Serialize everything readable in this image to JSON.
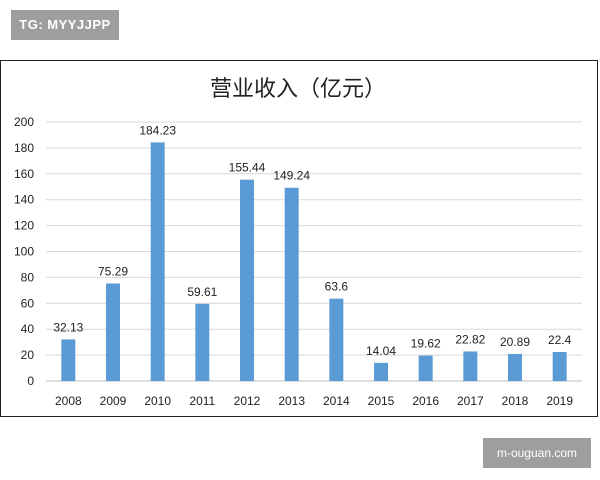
{
  "watermark_top": "TG: MYYJJPP",
  "watermark_bottom": "m-ouguan.com",
  "chart_data": {
    "type": "bar",
    "title": "营业收入（亿元）",
    "categories": [
      "2008",
      "2009",
      "2010",
      "2011",
      "2012",
      "2013",
      "2014",
      "2015",
      "2016",
      "2017",
      "2018",
      "2019"
    ],
    "values": [
      32.13,
      75.29,
      184.23,
      59.61,
      155.44,
      149.24,
      63.6,
      14.04,
      19.62,
      22.82,
      20.89,
      22.4
    ],
    "data_labels": [
      "32.13",
      "75.29",
      "184.23",
      "59.61",
      "155.44",
      "149.24",
      "63.6",
      "14.04",
      "19.62",
      "22.82",
      "20.89",
      "22.4"
    ],
    "yticks": [
      0,
      20,
      40,
      60,
      80,
      100,
      120,
      140,
      160,
      180,
      200
    ],
    "ylim": [
      0,
      200
    ],
    "grid": true,
    "bar_color": "#5b9bd5",
    "grid_color": "#d9d9d9"
  }
}
